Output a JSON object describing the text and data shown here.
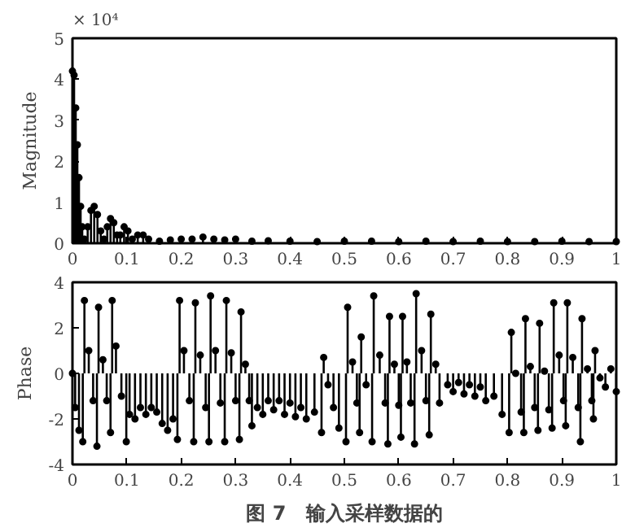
{
  "chart_data": [
    {
      "type": "lollipop",
      "ylabel": "Magnitude",
      "annotations": [
        "× 10⁴"
      ],
      "marker": "circle",
      "color": "#000000",
      "grid": false,
      "xlim": [
        0,
        1
      ],
      "xticks": [
        0,
        0.1,
        0.2,
        0.3,
        0.4,
        0.5,
        0.6,
        0.7,
        0.8,
        0.9,
        1
      ],
      "ylim": [
        0,
        5
      ],
      "yticks": [
        0,
        1,
        2,
        3,
        4,
        5
      ],
      "x": [
        0,
        0.003,
        0.006,
        0.009,
        0.012,
        0.015,
        0.018,
        0.022,
        0.028,
        0.034,
        0.04,
        0.046,
        0.052,
        0.058,
        0.064,
        0.07,
        0.076,
        0.082,
        0.088,
        0.095,
        0.102,
        0.11,
        0.12,
        0.13,
        0.14,
        0.16,
        0.18,
        0.2,
        0.22,
        0.24,
        0.26,
        0.28,
        0.3,
        0.33,
        0.36,
        0.4,
        0.45,
        0.5,
        0.55,
        0.6,
        0.65,
        0.7,
        0.75,
        0.8,
        0.85,
        0.9,
        0.95,
        1.0
      ],
      "values": [
        4.2,
        4.1,
        3.3,
        2.4,
        1.6,
        0.9,
        0.4,
        0.1,
        0.4,
        0.8,
        0.9,
        0.7,
        0.3,
        0.1,
        0.4,
        0.6,
        0.5,
        0.2,
        0.2,
        0.4,
        0.3,
        0.1,
        0.2,
        0.2,
        0.1,
        0.05,
        0.08,
        0.1,
        0.1,
        0.15,
        0.1,
        0.08,
        0.1,
        0.05,
        0.06,
        0.05,
        0.04,
        0.05,
        0.05,
        0.04,
        0.05,
        0.04,
        0.05,
        0.04,
        0.04,
        0.05,
        0.04,
        0.04
      ]
    },
    {
      "type": "lollipop",
      "ylabel": "Phase",
      "annotations": [
        "图 7　输入采样数据的"
      ],
      "marker": "circle",
      "color": "#000000",
      "grid": false,
      "xlim": [
        0,
        1
      ],
      "xticks": [
        0,
        0.1,
        0.2,
        0.3,
        0.4,
        0.5,
        0.6,
        0.7,
        0.8,
        0.9,
        1
      ],
      "ylim": [
        -4,
        4
      ],
      "yticks": [
        -4,
        -2,
        0,
        2,
        4
      ],
      "x": [
        0,
        0.005,
        0.012,
        0.019,
        0.022,
        0.03,
        0.038,
        0.045,
        0.048,
        0.056,
        0.063,
        0.07,
        0.073,
        0.08,
        0.09,
        0.099,
        0.105,
        0.115,
        0.125,
        0.135,
        0.145,
        0.155,
        0.165,
        0.175,
        0.185,
        0.193,
        0.197,
        0.205,
        0.215,
        0.223,
        0.226,
        0.235,
        0.245,
        0.251,
        0.254,
        0.263,
        0.272,
        0.28,
        0.283,
        0.292,
        0.3,
        0.307,
        0.31,
        0.318,
        0.325,
        0.33,
        0.34,
        0.35,
        0.36,
        0.37,
        0.38,
        0.39,
        0.4,
        0.41,
        0.42,
        0.43,
        0.445,
        0.458,
        0.462,
        0.47,
        0.48,
        0.49,
        0.503,
        0.506,
        0.515,
        0.523,
        0.528,
        0.531,
        0.54,
        0.551,
        0.554,
        0.565,
        0.575,
        0.58,
        0.583,
        0.592,
        0.6,
        0.604,
        0.607,
        0.615,
        0.622,
        0.629,
        0.632,
        0.642,
        0.65,
        0.656,
        0.659,
        0.668,
        0.675,
        0.69,
        0.7,
        0.71,
        0.72,
        0.73,
        0.74,
        0.75,
        0.76,
        0.775,
        0.79,
        0.803,
        0.807,
        0.815,
        0.825,
        0.83,
        0.833,
        0.842,
        0.85,
        0.856,
        0.859,
        0.868,
        0.876,
        0.882,
        0.885,
        0.895,
        0.903,
        0.907,
        0.91,
        0.92,
        0.93,
        0.934,
        0.937,
        0.947,
        0.955,
        0.958,
        0.961,
        0.97,
        0.98,
        0.99,
        1.0
      ],
      "values": [
        0,
        -1.5,
        -2.5,
        -3.0,
        3.2,
        1,
        -1.2,
        -3.2,
        2.9,
        0.6,
        -1.2,
        -2.6,
        3.2,
        1.2,
        -1,
        -3.0,
        -1.8,
        -2.0,
        -1.5,
        -1.8,
        -1.5,
        -1.7,
        -2.2,
        -2.5,
        -2.0,
        -2.9,
        3.2,
        1,
        -1.2,
        -3.0,
        3.1,
        0.8,
        -1.5,
        -3.0,
        3.4,
        1,
        -1.3,
        -3.0,
        3.2,
        0.9,
        -1.2,
        -2.9,
        2.7,
        0.4,
        -1.2,
        -2.3,
        -1.5,
        -1.8,
        -1.2,
        -1.6,
        -1.2,
        -1.8,
        -1.3,
        -1.9,
        -1.5,
        -2.0,
        -1.7,
        -2.6,
        0.7,
        -0.5,
        -1.5,
        -2.4,
        -3.0,
        2.9,
        0.5,
        -1.3,
        -2.6,
        1.6,
        -0.5,
        -3.0,
        3.4,
        0.8,
        -1.3,
        -3.1,
        2.5,
        0.4,
        -1.4,
        -2.8,
        2.5,
        0.5,
        -1.3,
        -3.1,
        3.5,
        1,
        -1.2,
        -2.7,
        2.6,
        0.4,
        -1.3,
        -0.5,
        -0.8,
        -0.4,
        -0.9,
        -0.5,
        -1.0,
        -0.6,
        -1.2,
        -1.0,
        -1.8,
        -2.6,
        1.8,
        0,
        -1.7,
        -2.6,
        2.4,
        0.3,
        -1.5,
        -2.5,
        2.2,
        0.1,
        -1.6,
        -2.4,
        3.1,
        0.8,
        -1.2,
        -2.3,
        3.1,
        0.7,
        -1.5,
        -3.0,
        2.4,
        0.2,
        -1.2,
        -2.0,
        1.0,
        -0.2,
        -0.6,
        0.2,
        -0.8
      ]
    }
  ]
}
